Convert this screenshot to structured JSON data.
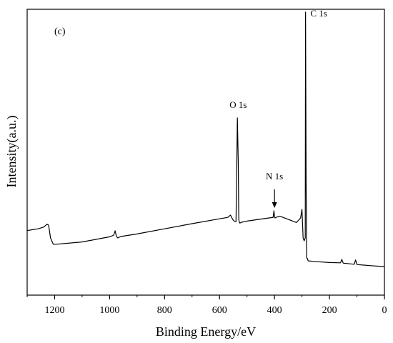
{
  "chart_data": {
    "type": "line",
    "panel_label": "(c)",
    "xlabel": "Binding Energy/eV",
    "ylabel": "Intensity(a.u.)",
    "xlim": [
      1300,
      0
    ],
    "x_reversed": true,
    "x_ticks": [
      1200,
      1000,
      800,
      600,
      400,
      200,
      0
    ],
    "y_ticks_shown": false,
    "ylim": [
      0,
      1
    ],
    "grid": false,
    "series": [
      {
        "x": [
          1300,
          1260,
          1240,
          1228,
          1222,
          1215,
          1205,
          1195,
          1100,
          1000,
          985,
          980,
          975,
          970,
          960,
          900,
          800,
          700,
          600,
          570,
          560,
          555,
          550,
          545,
          540,
          535,
          532,
          530,
          528,
          526,
          520,
          500,
          450,
          420,
          405,
          402,
          400,
          398,
          395,
          380,
          320,
          305,
          300,
          296,
          292,
          288,
          287,
          285,
          283,
          280,
          278,
          260,
          200,
          160,
          155,
          150,
          110,
          105,
          100,
          50,
          0
        ],
        "y": [
          0.226,
          0.232,
          0.238,
          0.248,
          0.245,
          0.2,
          0.178,
          0.178,
          0.186,
          0.204,
          0.21,
          0.225,
          0.205,
          0.2,
          0.205,
          0.214,
          0.232,
          0.25,
          0.267,
          0.272,
          0.28,
          0.27,
          0.262,
          0.258,
          0.257,
          0.62,
          0.47,
          0.265,
          0.255,
          0.252,
          0.255,
          0.259,
          0.266,
          0.27,
          0.272,
          0.295,
          0.273,
          0.27,
          0.272,
          0.276,
          0.254,
          0.27,
          0.3,
          0.2,
          0.19,
          0.2,
          0.99,
          0.4,
          0.13,
          0.128,
          0.12,
          0.118,
          0.114,
          0.113,
          0.125,
          0.112,
          0.108,
          0.123,
          0.107,
          0.103,
          0.1
        ]
      }
    ],
    "annotations": [
      {
        "text": "C 1s",
        "x": 285,
        "y": 0.975
      },
      {
        "text": "O 1s",
        "x": 532,
        "y": 0.655
      },
      {
        "text": "N 1s",
        "x": 400,
        "y": 0.405
      }
    ],
    "arrow": {
      "x": 400,
      "y_from": 0.37,
      "y_to": 0.305
    }
  }
}
